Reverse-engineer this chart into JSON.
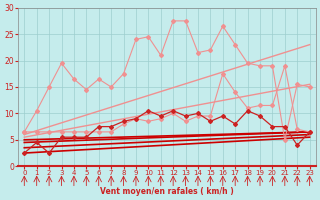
{
  "xlabel": "Vent moyen/en rafales ( km/h )",
  "xlim": [
    -0.5,
    23.5
  ],
  "ylim": [
    0,
    30
  ],
  "yticks": [
    0,
    5,
    10,
    15,
    20,
    25,
    30
  ],
  "xticks": [
    0,
    1,
    2,
    3,
    4,
    5,
    6,
    7,
    8,
    9,
    10,
    11,
    12,
    13,
    14,
    15,
    16,
    17,
    18,
    19,
    20,
    21,
    22,
    23
  ],
  "background_color": "#c5ecec",
  "grid_color": "#9ecece",
  "line_light_zigzag": {
    "x": [
      0,
      1,
      2,
      3,
      4,
      5,
      6,
      7,
      8,
      9,
      10,
      11,
      12,
      13,
      14,
      15,
      16,
      17,
      18,
      19,
      20,
      21,
      22,
      23
    ],
    "y": [
      6.5,
      10.5,
      15.0,
      19.5,
      16.5,
      14.5,
      16.5,
      15.0,
      17.5,
      24.0,
      24.5,
      21.0,
      27.5,
      27.5,
      21.5,
      22.0,
      26.5,
      23.0,
      19.5,
      19.0,
      19.0,
      5.0,
      15.5,
      15.0
    ],
    "color": "#f09090",
    "marker": "D",
    "markersize": 2,
    "linewidth": 0.8
  },
  "line_pink_zigzag": {
    "x": [
      0,
      1,
      2,
      3,
      4,
      5,
      6,
      7,
      8,
      9,
      10,
      11,
      12,
      13,
      14,
      15,
      16,
      17,
      18,
      19,
      20,
      21,
      22,
      23
    ],
    "y": [
      6.5,
      6.5,
      6.5,
      6.5,
      6.5,
      6.5,
      6.5,
      6.5,
      8.0,
      9.0,
      8.5,
      9.0,
      10.0,
      8.5,
      9.5,
      9.5,
      17.5,
      14.0,
      11.0,
      11.5,
      11.5,
      19.0,
      7.0,
      6.5
    ],
    "color": "#f09090",
    "marker": "D",
    "markersize": 2,
    "linewidth": 0.8
  },
  "line_red_zigzag": {
    "x": [
      0,
      1,
      2,
      3,
      4,
      5,
      6,
      7,
      8,
      9,
      10,
      11,
      12,
      13,
      14,
      15,
      16,
      17,
      18,
      19,
      20,
      21,
      22,
      23
    ],
    "y": [
      2.5,
      4.5,
      2.5,
      5.5,
      5.5,
      5.5,
      7.5,
      7.5,
      8.5,
      9.0,
      10.5,
      9.5,
      10.5,
      9.5,
      10.0,
      8.5,
      9.5,
      8.0,
      10.5,
      9.5,
      7.5,
      7.5,
      4.0,
      6.5
    ],
    "color": "#cc2222",
    "marker": "D",
    "markersize": 2,
    "linewidth": 0.9
  },
  "slope_lines": [
    {
      "x": [
        0,
        23
      ],
      "y": [
        6.0,
        23.0
      ],
      "color": "#f09090",
      "linewidth": 1.0
    },
    {
      "x": [
        0,
        23
      ],
      "y": [
        5.5,
        15.5
      ],
      "color": "#f09090",
      "linewidth": 1.0
    },
    {
      "x": [
        0,
        23
      ],
      "y": [
        5.0,
        6.5
      ],
      "color": "#cc0000",
      "linewidth": 1.2
    },
    {
      "x": [
        0,
        23
      ],
      "y": [
        4.5,
        6.5
      ],
      "color": "#cc0000",
      "linewidth": 1.2
    },
    {
      "x": [
        0,
        23
      ],
      "y": [
        3.5,
        6.0
      ],
      "color": "#cc0000",
      "linewidth": 1.2
    },
    {
      "x": [
        0,
        23
      ],
      "y": [
        2.5,
        5.5
      ],
      "color": "#cc0000",
      "linewidth": 1.2
    }
  ],
  "arrow_color": "#cc2222",
  "hline_color": "#cc2222"
}
